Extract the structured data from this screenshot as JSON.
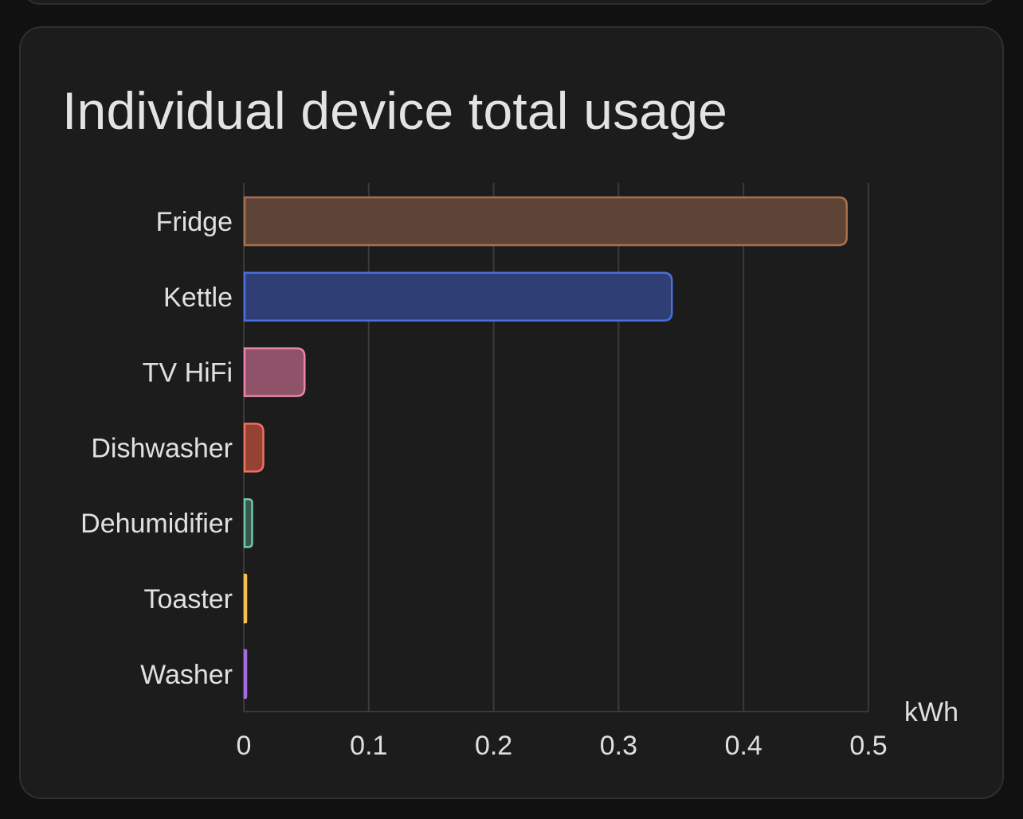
{
  "card": {
    "title": "Individual device total usage"
  },
  "chart_data": {
    "type": "bar",
    "orientation": "horizontal",
    "title": "Individual device total usage",
    "categories": [
      "Fridge",
      "Kettle",
      "TV HiFi",
      "Dishwasher",
      "Dehumidifier",
      "Toaster",
      "Washer"
    ],
    "values": [
      0.482,
      0.342,
      0.048,
      0.015,
      0.006,
      0.001,
      0.001
    ],
    "colors": [
      "#a8714e",
      "#4a6fdc",
      "#e985a8",
      "#f07060",
      "#6fc7a8",
      "#f2c14e",
      "#a66ae0"
    ],
    "fills": [
      "#5e4436",
      "#2f3f75",
      "#8e5368",
      "#944234",
      "#36584c",
      "#6b5a2c",
      "#4d3770"
    ],
    "xlim": [
      0,
      0.5
    ],
    "xticks": [
      "0",
      "0.1",
      "0.2",
      "0.3",
      "0.4",
      "0.5"
    ],
    "unit": "kWh",
    "grid": true
  }
}
